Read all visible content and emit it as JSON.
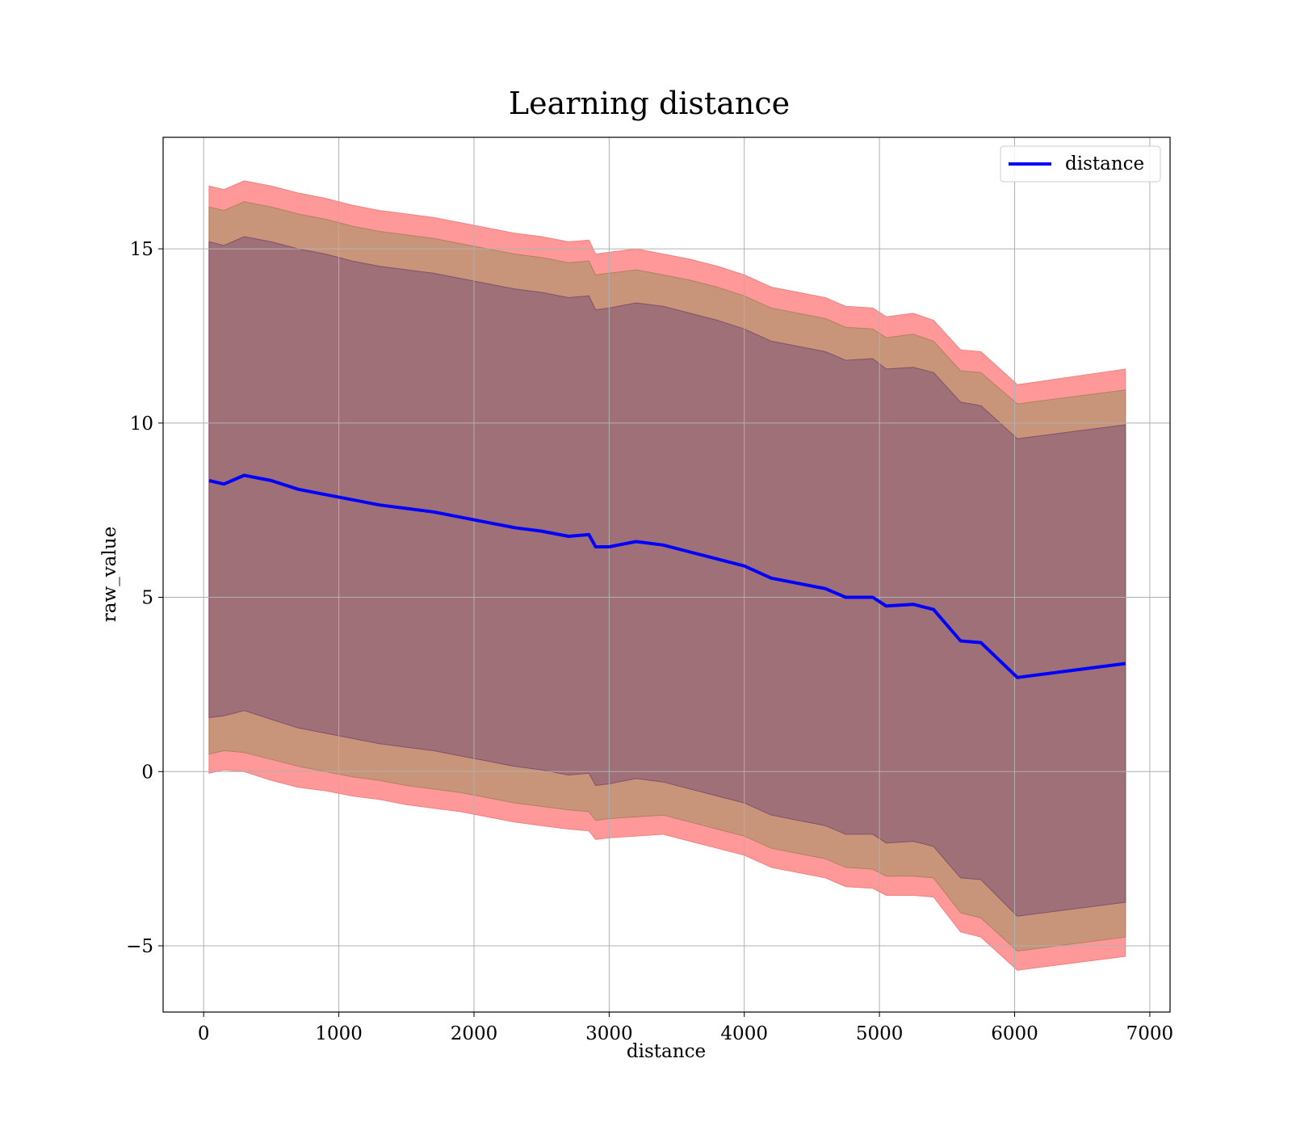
{
  "chart_data": {
    "type": "line",
    "title": "Learning distance",
    "xlabel": "distance",
    "ylabel": "raw_value",
    "xlim": [
      -300,
      7150
    ],
    "ylim": [
      -6.9,
      18.2
    ],
    "xticks": [
      0,
      1000,
      2000,
      3000,
      4000,
      5000,
      6000,
      7000
    ],
    "xtick_labels": [
      "0",
      "1000",
      "2000",
      "3000",
      "4000",
      "5000",
      "6000",
      "7000"
    ],
    "yticks": [
      -5,
      0,
      5,
      10,
      15
    ],
    "ytick_labels": [
      "−5",
      "0",
      "5",
      "10",
      "15"
    ],
    "grid": true,
    "legend": {
      "position": "upper right",
      "entries": [
        "distance"
      ]
    },
    "colors": {
      "line": "#0000ff",
      "band_outer": "#ff9999",
      "band_middle": "#c9957a",
      "band_inner": "#a07078",
      "grid": "#b0b0b0"
    },
    "x": [
      40,
      150,
      300,
      500,
      700,
      900,
      1100,
      1300,
      1500,
      1700,
      1900,
      2100,
      2300,
      2500,
      2700,
      2850,
      2900,
      3000,
      3200,
      3400,
      3600,
      3800,
      4000,
      4200,
      4400,
      4600,
      4750,
      4950,
      5050,
      5250,
      5400,
      5600,
      5750,
      6020,
      6820
    ],
    "series": [
      {
        "name": "distance",
        "values": [
          8.35,
          8.25,
          8.5,
          8.35,
          8.1,
          7.95,
          7.8,
          7.65,
          7.55,
          7.45,
          7.3,
          7.15,
          7.0,
          6.9,
          6.75,
          6.8,
          6.45,
          6.45,
          6.6,
          6.5,
          6.3,
          6.1,
          5.9,
          5.55,
          5.4,
          5.25,
          5.0,
          5.0,
          4.75,
          4.8,
          4.65,
          3.75,
          3.7,
          2.7,
          3.1
        ]
      }
    ],
    "bands": [
      {
        "name": "outer",
        "lower": [
          -0.05,
          0.05,
          0.0,
          -0.25,
          -0.45,
          -0.55,
          -0.7,
          -0.8,
          -0.95,
          -1.05,
          -1.15,
          -1.3,
          -1.45,
          -1.55,
          -1.65,
          -1.7,
          -1.95,
          -1.9,
          -1.85,
          -1.8,
          -2.0,
          -2.2,
          -2.4,
          -2.75,
          -2.9,
          -3.05,
          -3.3,
          -3.35,
          -3.55,
          -3.55,
          -3.6,
          -4.6,
          -4.75,
          -5.7,
          -5.3
        ],
        "upper": [
          16.8,
          16.7,
          16.95,
          16.8,
          16.6,
          16.45,
          16.25,
          16.1,
          16.0,
          15.9,
          15.75,
          15.6,
          15.45,
          15.35,
          15.2,
          15.25,
          14.85,
          14.9,
          15.0,
          14.85,
          14.7,
          14.5,
          14.25,
          13.9,
          13.75,
          13.6,
          13.35,
          13.3,
          13.05,
          13.15,
          12.95,
          12.1,
          12.05,
          11.1,
          11.55
        ]
      },
      {
        "name": "middle",
        "lower": [
          0.5,
          0.6,
          0.55,
          0.35,
          0.15,
          0.0,
          -0.15,
          -0.25,
          -0.4,
          -0.5,
          -0.6,
          -0.75,
          -0.9,
          -1.0,
          -1.1,
          -1.15,
          -1.4,
          -1.35,
          -1.3,
          -1.25,
          -1.45,
          -1.65,
          -1.85,
          -2.2,
          -2.35,
          -2.5,
          -2.75,
          -2.8,
          -3.0,
          -3.0,
          -3.05,
          -4.05,
          -4.2,
          -5.15,
          -4.75
        ],
        "upper": [
          16.2,
          16.1,
          16.35,
          16.2,
          16.0,
          15.85,
          15.65,
          15.5,
          15.4,
          15.3,
          15.15,
          15.0,
          14.85,
          14.75,
          14.6,
          14.65,
          14.25,
          14.3,
          14.4,
          14.25,
          14.1,
          13.9,
          13.65,
          13.3,
          13.15,
          13.0,
          12.75,
          12.7,
          12.45,
          12.55,
          12.35,
          11.5,
          11.45,
          10.55,
          10.95
        ]
      },
      {
        "name": "inner",
        "lower": [
          1.55,
          1.6,
          1.75,
          1.5,
          1.25,
          1.1,
          0.95,
          0.8,
          0.7,
          0.6,
          0.45,
          0.3,
          0.15,
          0.05,
          -0.1,
          -0.05,
          -0.4,
          -0.35,
          -0.2,
          -0.3,
          -0.5,
          -0.7,
          -0.9,
          -1.25,
          -1.4,
          -1.55,
          -1.8,
          -1.8,
          -2.05,
          -2.0,
          -2.15,
          -3.05,
          -3.1,
          -4.15,
          -3.75
        ],
        "upper": [
          15.2,
          15.1,
          15.35,
          15.2,
          15.0,
          14.85,
          14.65,
          14.5,
          14.4,
          14.3,
          14.15,
          14.0,
          13.85,
          13.75,
          13.6,
          13.65,
          13.25,
          13.3,
          13.45,
          13.35,
          13.15,
          12.95,
          12.7,
          12.35,
          12.2,
          12.05,
          11.8,
          11.85,
          11.55,
          11.6,
          11.45,
          10.6,
          10.5,
          9.55,
          9.95
        ]
      }
    ]
  }
}
